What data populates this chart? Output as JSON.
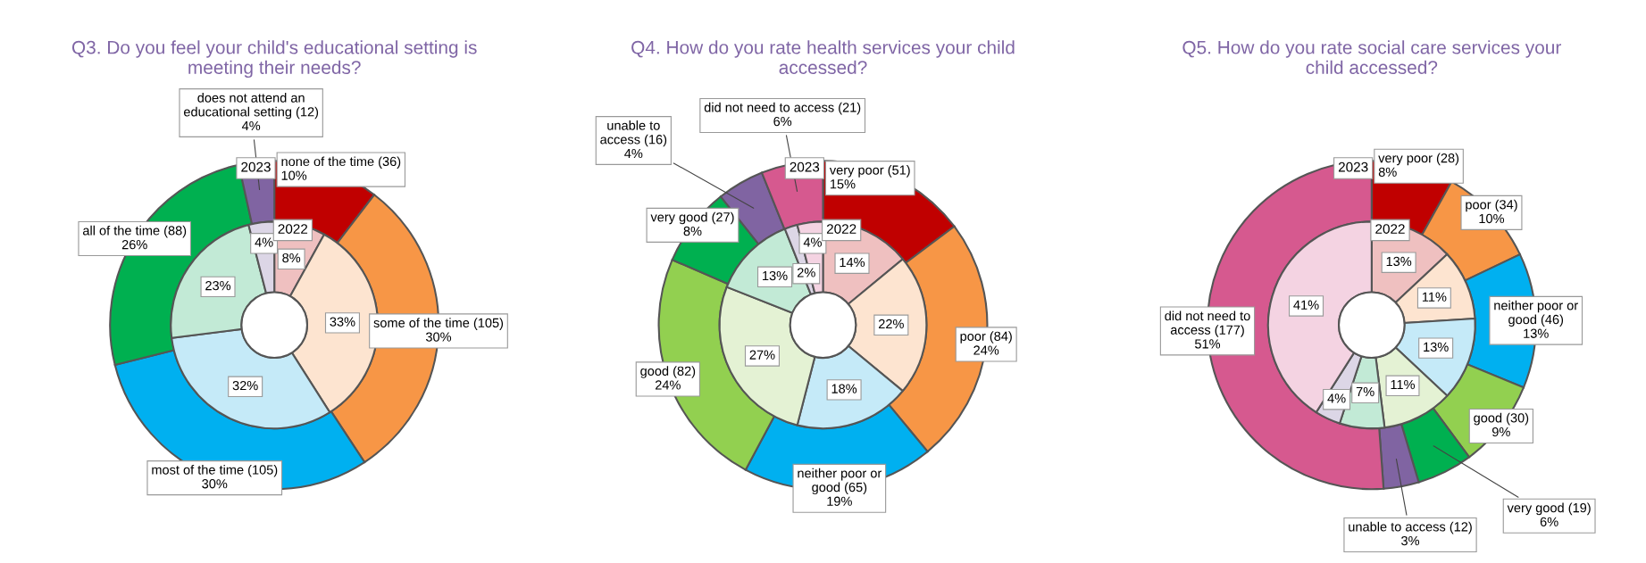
{
  "chart_data": [
    {
      "type": "donut",
      "title": "Q3. Do you feel your child's educational setting is\nmeeting their needs?",
      "categories": [
        "none of the time",
        "some of the time",
        "most of the time",
        "all of the time",
        "does not attend an\neducational setting"
      ],
      "series": [
        {
          "name": "2023",
          "values": [
            36,
            105,
            105,
            88,
            12
          ],
          "value_labels": [
            "(36)\n10%",
            "(105)\n30%",
            "(105)\n30%",
            "(88)\n26%",
            "(12)\n4%"
          ],
          "colors": [
            "#c00000",
            "#f79646",
            "#00b0f0",
            "#00b050",
            "#8064a2"
          ]
        },
        {
          "name": "2022",
          "values": [
            8,
            33,
            32,
            23,
            4
          ],
          "value_labels": [
            "8%",
            "33%",
            "32%",
            "23%",
            "4%"
          ],
          "colors": [
            "#efc0c0",
            "#fde4d0",
            "#c5eaf8",
            "#c2ead6",
            "#dcd6e6"
          ]
        }
      ]
    },
    {
      "type": "donut",
      "title": "Q4. How do you rate health services your child\naccessed?",
      "categories": [
        "very poor",
        "poor",
        "neither poor or\ngood",
        "good",
        "very good",
        "unable to\naccess",
        "did not need to access"
      ],
      "series": [
        {
          "name": "2023",
          "values": [
            51,
            84,
            65,
            82,
            27,
            16,
            21
          ],
          "value_labels": [
            "(51)\n15%",
            "(84)\n24%",
            "(65)\n19%",
            "(82)\n24%",
            "(27)\n8%",
            "(16)\n4%",
            "(21)\n6%"
          ],
          "colors": [
            "#c00000",
            "#f79646",
            "#00b0f0",
            "#92d050",
            "#00b050",
            "#8064a2",
            "#d6598f"
          ]
        },
        {
          "name": "2022",
          "values": [
            14,
            22,
            18,
            27,
            13,
            2,
            4
          ],
          "value_labels": [
            "14%",
            "22%",
            "18%",
            "27%",
            "13%",
            "2%",
            "4%"
          ],
          "colors": [
            "#efc0c0",
            "#fde4d0",
            "#c5eaf8",
            "#e4f2d4",
            "#c2ead6",
            "#dcd6e6",
            "#f4d3e2"
          ]
        }
      ]
    },
    {
      "type": "donut",
      "title": "Q5. How do you rate social care services your\nchild accessed?",
      "categories": [
        "very poor",
        "poor",
        "neither poor or\ngood",
        "good",
        "very good",
        "unable to access",
        "did not need to\naccess"
      ],
      "series": [
        {
          "name": "2023",
          "values": [
            28,
            34,
            46,
            30,
            19,
            12,
            177
          ],
          "value_labels": [
            "(28)\n8%",
            "(34)\n10%",
            "(46)\n13%",
            "(30)\n9%",
            "(19)\n6%",
            "(12)\n3%",
            "(177)\n51%"
          ],
          "colors": [
            "#c00000",
            "#f79646",
            "#00b0f0",
            "#92d050",
            "#00b050",
            "#8064a2",
            "#d6598f"
          ]
        },
        {
          "name": "2022",
          "values": [
            13,
            11,
            13,
            11,
            7,
            4,
            41
          ],
          "value_labels": [
            "13%",
            "11%",
            "13%",
            "11%",
            "7%",
            "4%",
            "41%"
          ],
          "colors": [
            "#efc0c0",
            "#fde4d0",
            "#c5eaf8",
            "#e4f2d4",
            "#c2ead6",
            "#dcd6e6",
            "#f4d3e2"
          ]
        }
      ]
    }
  ]
}
